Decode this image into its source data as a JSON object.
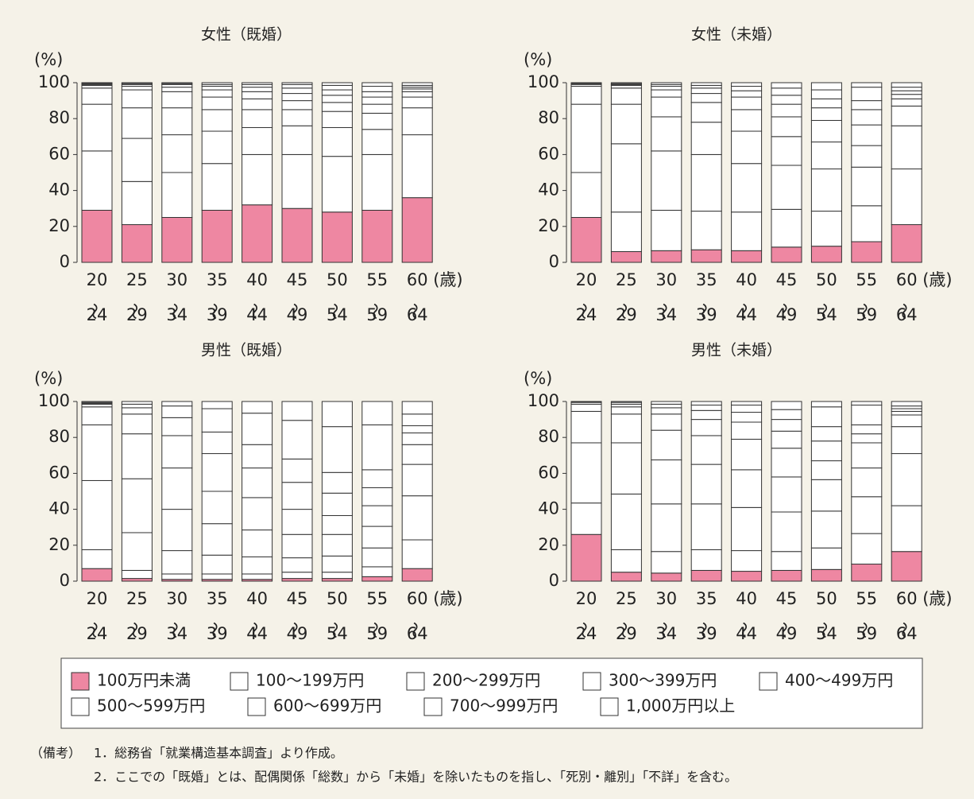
{
  "legend": {
    "names": [
      "100万円未満",
      "100～199万円",
      "200～299万円",
      "300～399万円",
      "400～499万円",
      "500～599万円",
      "600～699万円",
      "700～999万円",
      "1,000万円以上"
    ],
    "colors": [
      "#ee87a2",
      "#ffffff",
      "#ffffff",
      "#ffffff",
      "#ffffff",
      "#ffffff",
      "#ffffff",
      "#ffffff",
      "#ffffff"
    ]
  },
  "chart_data": [
    {
      "type": "bar",
      "title": "女性（既婚）",
      "ylabel": "(%)",
      "xlabel": "(歳)",
      "ylim": [
        0,
        100
      ],
      "yticks": [
        0,
        20,
        40,
        60,
        80,
        100
      ],
      "categories": [
        "20～24",
        "25～29",
        "30～34",
        "35～39",
        "40～44",
        "45～49",
        "50～54",
        "55～59",
        "60～64"
      ],
      "series": [
        {
          "values": [
            29,
            21,
            25,
            29,
            32,
            30,
            28,
            29,
            36
          ]
        },
        {
          "values": [
            33,
            24,
            25,
            26,
            28,
            30,
            31,
            31,
            35
          ]
        },
        {
          "values": [
            26,
            24,
            21,
            18,
            15,
            16,
            16,
            14,
            15
          ]
        },
        {
          "values": [
            9,
            17,
            15,
            12,
            10,
            9,
            9,
            9,
            6
          ]
        },
        {
          "values": [
            1.5,
            10,
            9,
            7,
            6,
            5,
            5,
            5,
            3
          ]
        },
        {
          "values": [
            0.5,
            2,
            2.5,
            4,
            4,
            4,
            4,
            4,
            1.5
          ]
        },
        {
          "values": [
            0.5,
            1,
            1.5,
            2,
            2.5,
            3,
            3,
            3,
            1
          ]
        },
        {
          "values": [
            0.3,
            0.5,
            0.5,
            1,
            1.5,
            2,
            2.5,
            3,
            1
          ]
        },
        {
          "values": [
            0.2,
            0.5,
            0.5,
            1,
            1,
            1,
            1.5,
            2,
            1.5
          ]
        }
      ]
    },
    {
      "type": "bar",
      "title": "女性（未婚）",
      "ylabel": "(%)",
      "xlabel": "(歳)",
      "ylim": [
        0,
        100
      ],
      "yticks": [
        0,
        20,
        40,
        60,
        80,
        100
      ],
      "categories": [
        "20～24",
        "25～29",
        "30～34",
        "35～39",
        "40～44",
        "45～49",
        "50～54",
        "55～59",
        "60～64"
      ],
      "series": [
        {
          "values": [
            25,
            6,
            6.5,
            7,
            6.5,
            8.5,
            9,
            11.5,
            21
          ]
        },
        {
          "values": [
            25,
            22,
            22.5,
            21.5,
            21.5,
            21,
            19.5,
            20,
            31
          ]
        },
        {
          "values": [
            38,
            38,
            33,
            31.5,
            27,
            24.5,
            23.5,
            21.5,
            24
          ]
        },
        {
          "values": [
            10,
            22,
            19,
            18,
            18,
            16,
            15,
            12,
            11
          ]
        },
        {
          "values": [
            1,
            9,
            11,
            11,
            12,
            11,
            12,
            11.5,
            4
          ]
        },
        {
          "values": [
            0.5,
            1.5,
            4,
            5,
            7,
            7,
            7,
            8.5,
            2.5
          ]
        },
        {
          "values": [
            0.2,
            0.5,
            2,
            3,
            3.5,
            5,
            5,
            5,
            2
          ]
        },
        {
          "values": [
            0.2,
            0.5,
            1,
            1.5,
            2.5,
            4,
            5,
            7.5,
            2
          ]
        },
        {
          "values": [
            0.1,
            0.5,
            1,
            1.5,
            2,
            3,
            4,
            2.5,
            2.5
          ]
        }
      ]
    },
    {
      "type": "bar",
      "title": "男性（既婚）",
      "ylabel": "(%)",
      "xlabel": "(歳)",
      "ylim": [
        0,
        100
      ],
      "yticks": [
        0,
        20,
        40,
        60,
        80,
        100
      ],
      "categories": [
        "20～24",
        "25～29",
        "30～34",
        "35～39",
        "40～44",
        "45～49",
        "50～54",
        "55～59",
        "60～64"
      ],
      "series": [
        {
          "values": [
            7,
            1.5,
            1,
            1,
            1,
            1.5,
            1.5,
            2.5,
            7
          ]
        },
        {
          "values": [
            10.5,
            4.5,
            3,
            3,
            3,
            3.5,
            3.5,
            5.5,
            16
          ]
        },
        {
          "values": [
            38.5,
            21,
            13,
            10.5,
            9.5,
            8,
            9,
            10.5,
            24.5
          ]
        },
        {
          "values": [
            31,
            30,
            23,
            17.5,
            15,
            13,
            12,
            12,
            17.5
          ]
        },
        {
          "values": [
            10,
            25,
            23,
            18,
            18,
            14,
            10.5,
            11.5,
            11
          ]
        },
        {
          "values": [
            1.5,
            11,
            18,
            21,
            16.5,
            15,
            12.5,
            10,
            6.5
          ]
        },
        {
          "values": [
            0.5,
            3.5,
            10,
            12,
            13,
            13,
            11.5,
            10,
            4
          ]
        },
        {
          "values": [
            0.5,
            2,
            6.5,
            13,
            17.5,
            21.5,
            25.5,
            25,
            6.5
          ]
        },
        {
          "values": [
            0.5,
            1.5,
            2.5,
            4,
            6.5,
            10.5,
            14,
            13,
            7
          ]
        }
      ]
    },
    {
      "type": "bar",
      "title": "男性（未婚）",
      "ylabel": "(%)",
      "xlabel": "(歳)",
      "ylim": [
        0,
        100
      ],
      "yticks": [
        0,
        20,
        40,
        60,
        80,
        100
      ],
      "categories": [
        "20～24",
        "25～29",
        "30～34",
        "35～39",
        "40～44",
        "45～49",
        "50～54",
        "55～59",
        "60～64"
      ],
      "series": [
        {
          "values": [
            26,
            5,
            4.5,
            6,
            5.5,
            6,
            6.5,
            9.5,
            16.5
          ]
        },
        {
          "values": [
            17.5,
            12.5,
            12,
            11.5,
            11.5,
            10.5,
            12,
            17,
            25.5
          ]
        },
        {
          "values": [
            33.5,
            31,
            26.5,
            25.5,
            24,
            22,
            20.5,
            20.5,
            29
          ]
        },
        {
          "values": [
            17.5,
            28.5,
            24.5,
            22,
            21,
            19.5,
            17.5,
            16,
            15
          ]
        },
        {
          "values": [
            4,
            16,
            16.5,
            16,
            17,
            16,
            10.5,
            14,
            6.5
          ]
        },
        {
          "values": [
            1,
            4,
            9,
            9,
            9.5,
            9.5,
            11,
            5,
            2
          ]
        },
        {
          "values": [
            0.3,
            1.5,
            3.5,
            5,
            5.5,
            6.5,
            8,
            5,
            1.5
          ]
        },
        {
          "values": [
            0.1,
            1,
            2,
            3,
            4,
            5.5,
            11,
            11,
            1.5
          ]
        },
        {
          "values": [
            0.1,
            0.5,
            1.5,
            2,
            2,
            4.5,
            3,
            2,
            2.5
          ]
        }
      ]
    }
  ],
  "notes_label": "（備考）",
  "notes": [
    "1．総務省「就業構造基本調査」より作成。",
    "2．ここでの「既婚」とは、配偶関係「総数」から「未婚」を除いたものを指し、「死別・離別」「不詳」を含む。"
  ]
}
